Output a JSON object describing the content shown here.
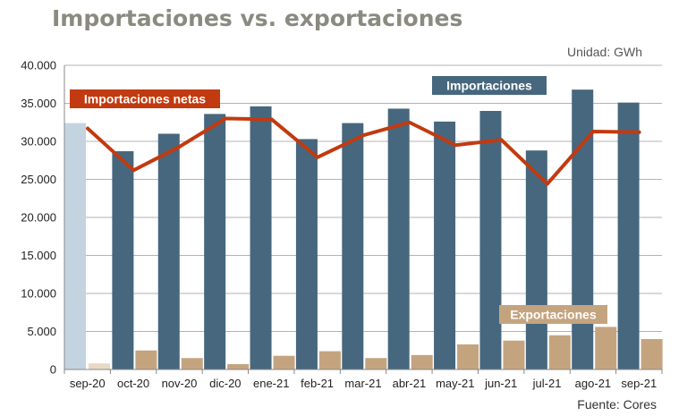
{
  "title": "Importaciones vs. exportaciones",
  "unit": "Unidad: GWh",
  "source": "Fuente: Cores",
  "colors": {
    "imports": "#46677e",
    "imports_first": "#c3d4e0",
    "exports": "#c4a47f",
    "exports_first": "#e8d8c4",
    "net_imports": "#c23a10"
  },
  "chart_data": {
    "type": "bar",
    "title": "Importaciones vs. exportaciones",
    "categories": [
      "sep-20",
      "oct-20",
      "nov-20",
      "dic-20",
      "ene-21",
      "feb-21",
      "mar-21",
      "abr-21",
      "may-21",
      "jun-21",
      "jul-21",
      "ago-21",
      "sep-21"
    ],
    "series": [
      {
        "name": "Importaciones",
        "type": "bar",
        "values": [
          32400,
          28700,
          31000,
          33600,
          34600,
          30300,
          32400,
          34300,
          32600,
          34000,
          28800,
          36800,
          35100
        ]
      },
      {
        "name": "Exportaciones",
        "type": "bar",
        "values": [
          800,
          2500,
          1500,
          700,
          1800,
          2400,
          1500,
          1900,
          3300,
          3800,
          4500,
          5600,
          4000
        ]
      },
      {
        "name": "Importaciones netas",
        "type": "line",
        "values": [
          31700,
          26200,
          29300,
          33000,
          32900,
          27900,
          30800,
          32500,
          29500,
          30200,
          24400,
          31300,
          31200
        ]
      }
    ],
    "ylim": [
      0,
      40000
    ],
    "yticks": [
      0,
      5000,
      10000,
      15000,
      20000,
      25000,
      30000,
      35000,
      40000
    ],
    "ytick_labels": [
      "0",
      "5.000",
      "10.000",
      "15.000",
      "20.000",
      "25.000",
      "30.000",
      "35.000",
      "40.000"
    ],
    "grid": true,
    "legend": [
      {
        "label": "Importaciones netas",
        "placement": "top-left"
      },
      {
        "label": "Importaciones",
        "placement": "top-right"
      },
      {
        "label": "Exportaciones",
        "placement": "bottom-right"
      }
    ]
  }
}
